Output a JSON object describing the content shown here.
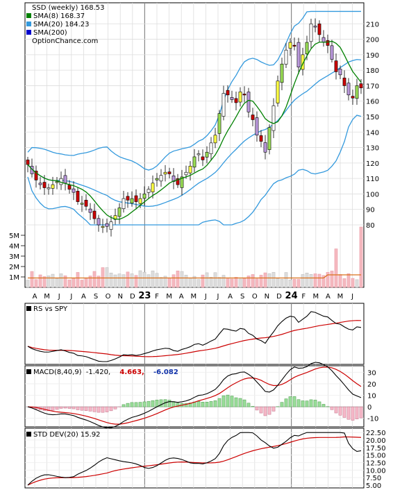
{
  "chart_data": [
    {
      "type": "candlestick",
      "legend": [
        {
          "text": "SSD (weekly) 168.53",
          "color": "#000000",
          "swatch": false
        },
        {
          "text": "SMA(8) 168.37",
          "color": "#008000",
          "swatch": true
        },
        {
          "text": "SMA(20) 184.23",
          "color": "#3399dd",
          "swatch": true
        },
        {
          "text": "SMA(200)",
          "color": "#0000cc",
          "swatch": true
        },
        {
          "text": "OptionChance.com",
          "color": "#000000",
          "swatch": false
        }
      ],
      "price_axis": {
        "ylim": [
          80,
          220
        ],
        "ticks": [
          80,
          90,
          100,
          110,
          120,
          130,
          140,
          150,
          160,
          170,
          180,
          190,
          200,
          210
        ]
      },
      "volume_axis": {
        "ylim": [
          0,
          6000000
        ],
        "ticks": [
          1000000,
          2000000,
          3000000,
          4000000,
          5000000
        ],
        "tick_labels": [
          "1M",
          "2M",
          "3M",
          "4M",
          "5M"
        ]
      },
      "x_labels": [
        "A",
        "M",
        "J",
        "J",
        "A",
        "S",
        "O",
        "N",
        "D",
        "23",
        "F",
        "M",
        "A",
        "M",
        "J",
        "J",
        "A",
        "S",
        "O",
        "N",
        "D",
        "24",
        "F",
        "M",
        "A",
        "M",
        "J"
      ],
      "year_labels": [
        "23",
        "24"
      ],
      "close": [
        119,
        113,
        109,
        106,
        104,
        104,
        106,
        108,
        110,
        107,
        103,
        101,
        95,
        94,
        92,
        88,
        84,
        80,
        79,
        79,
        82,
        86,
        91,
        97,
        96,
        97,
        95,
        97,
        100,
        103,
        107,
        110,
        112,
        114,
        113,
        108,
        106,
        111,
        114,
        118,
        124,
        126,
        122,
        127,
        133,
        138,
        152,
        165,
        164,
        161,
        159,
        166,
        164,
        153,
        148,
        138,
        134,
        127,
        143,
        157,
        173,
        184,
        193,
        198,
        196,
        182,
        190,
        198,
        210,
        208,
        203,
        198,
        196,
        187,
        179,
        177,
        170,
        164,
        162,
        170,
        168.53
      ],
      "sma8_end": 168.37,
      "sma20_end": 184.23,
      "volume_note": "weekly volume bars, values in shares"
    },
    {
      "type": "line",
      "title": "RS vs SPY",
      "series": [
        {
          "name": "RS vs SPY"
        }
      ]
    },
    {
      "type": "line",
      "title": "MACD(8,40,9)",
      "values_label": "-1.420,",
      "signal_label": "4.663,",
      "hist_label": "-6.082",
      "signal_color": "#cc0000",
      "hist_color": "#1133aa",
      "y_ticks": [
        -10,
        0,
        10,
        20,
        30
      ]
    },
    {
      "type": "line",
      "title": "STD DEV(20) 15.92",
      "y_ticks": [
        5.0,
        7.5,
        10.0,
        12.5,
        15.0,
        17.5,
        20.0,
        22.5
      ],
      "y_tick_labels": [
        "5.00",
        "7.50",
        "10.00",
        "12.50",
        "15.00",
        "17.50",
        "20.00",
        "22.50"
      ]
    }
  ]
}
